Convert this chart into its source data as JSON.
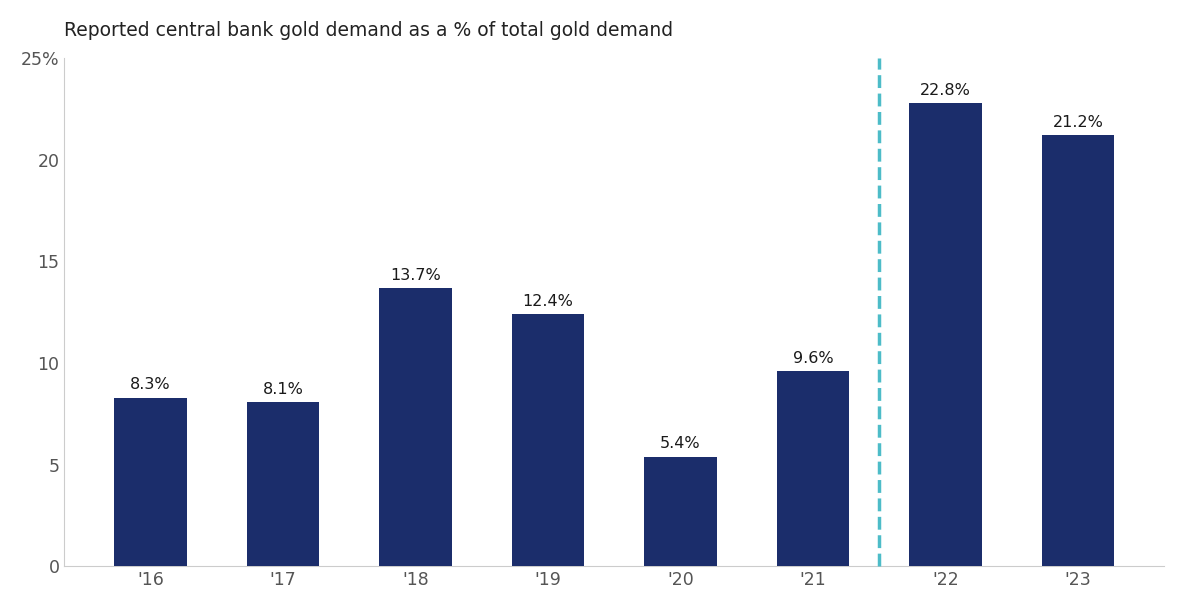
{
  "title": "Reported central bank gold demand as a % of total gold demand",
  "categories": [
    "'16",
    "'17",
    "'18",
    "'19",
    "'20",
    "'21",
    "'22",
    "'23"
  ],
  "values": [
    8.3,
    8.1,
    13.7,
    12.4,
    5.4,
    9.6,
    22.8,
    21.2
  ],
  "labels": [
    "8.3%",
    "8.1%",
    "13.7%",
    "12.4%",
    "5.4%",
    "9.6%",
    "22.8%",
    "21.2%"
  ],
  "bar_color": "#1b2d6b",
  "dashed_line_color": "#4dbcc8",
  "background_color": "#ffffff",
  "title_fontsize": 13.5,
  "label_fontsize": 11.5,
  "tick_fontsize": 12.5,
  "ylim": [
    0,
    25
  ],
  "yticks": [
    0,
    5,
    10,
    15,
    20,
    25
  ],
  "ytick_labels": [
    "0",
    "5",
    "10",
    "15",
    "20",
    "25%"
  ],
  "dashed_line_x": 5.5,
  "bar_width": 0.55
}
